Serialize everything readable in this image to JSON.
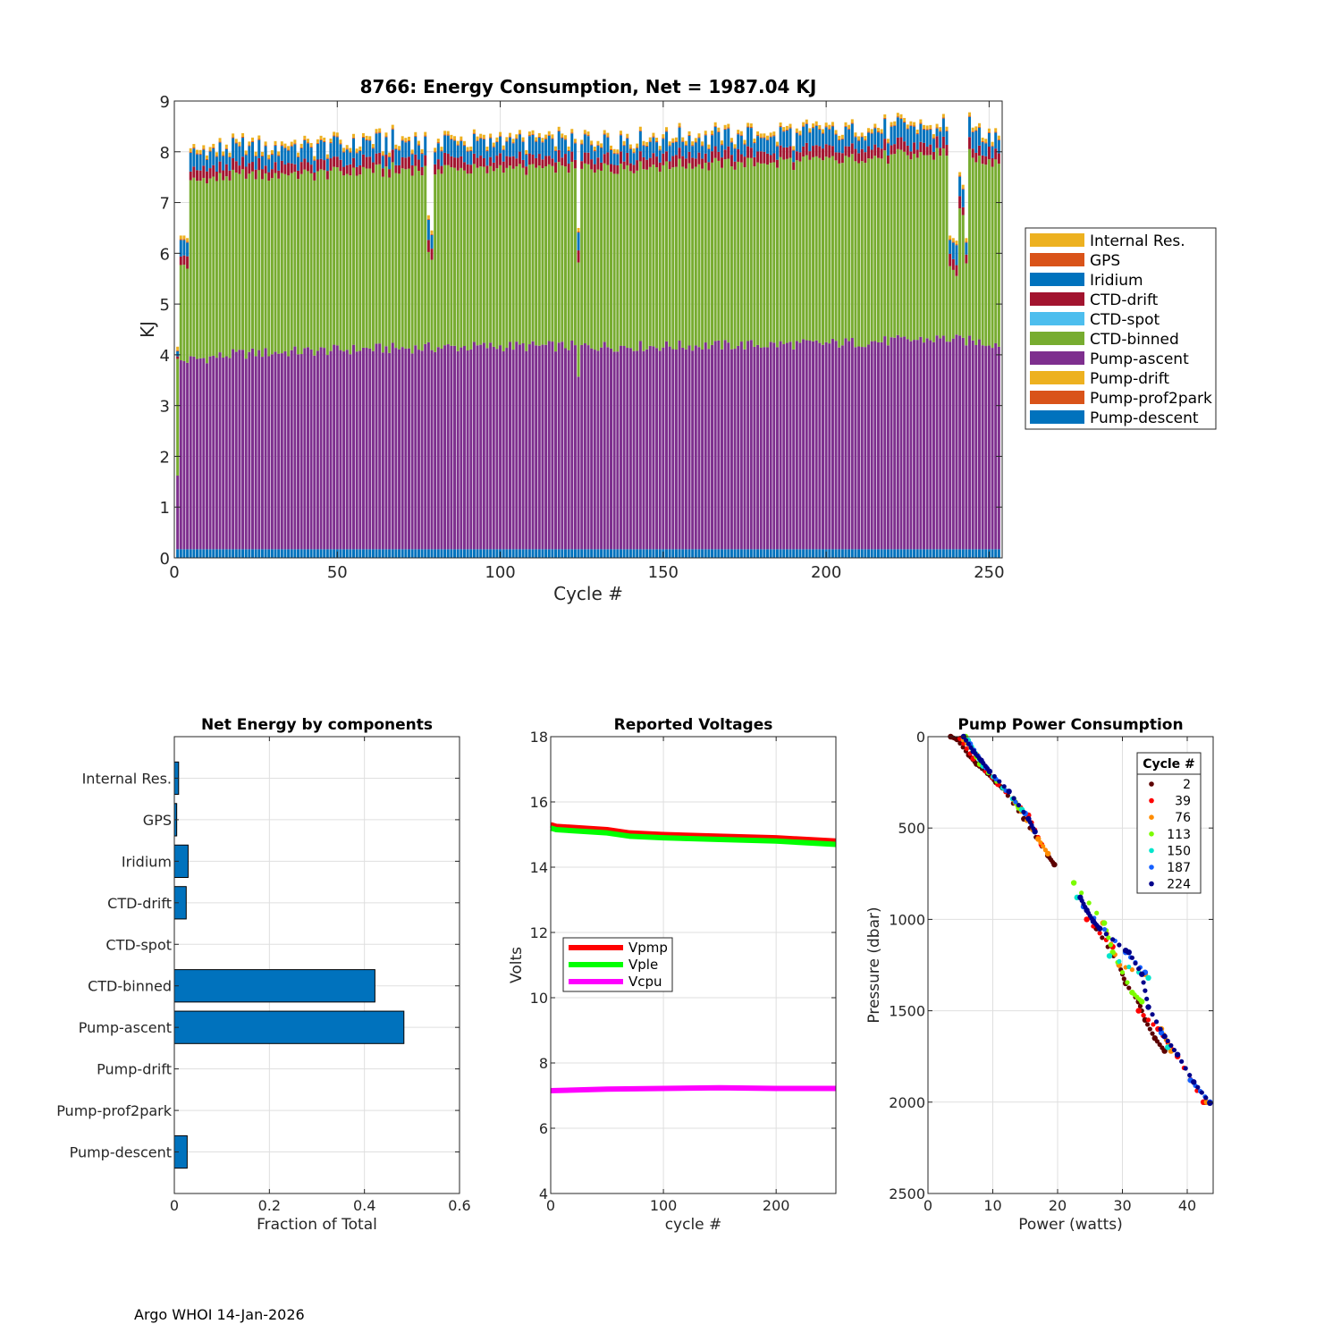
{
  "footer": "Argo WHOI 14-Jan-2026",
  "colors": {
    "Internal Res.": "#EDB120",
    "GPS": "#D95319",
    "Iridium": "#0072BD",
    "CTD-drift": "#A2142F",
    "CTD-spot": "#4DBEEE",
    "CTD-binned": "#77AC30",
    "Pump-ascent": "#7E2F8E",
    "Pump-drift": "#EDB120",
    "Pump-prof2park": "#D95319",
    "Pump-descent": "#0072BD",
    "Vpmp": "#FF0000",
    "Vple": "#00FF00",
    "Vcpu": "#FF00FF",
    "hbar": "#0072BD"
  },
  "chart_data": [
    {
      "type": "bar",
      "stacked": true,
      "title": "8766: Energy Consumption,  Net = 1987.04 KJ",
      "xlabel": "Cycle #",
      "ylabel": "KJ",
      "xlim": [
        0,
        254
      ],
      "ylim": [
        0,
        9
      ],
      "xticks": [
        0,
        50,
        100,
        150,
        200,
        250
      ],
      "yticks": [
        0,
        1,
        2,
        3,
        4,
        5,
        6,
        7,
        8,
        9
      ],
      "legend_position": "outside-right",
      "legend": [
        "Internal Res.",
        "GPS",
        "Iridium",
        "CTD-drift",
        "CTD-spot",
        "CTD-binned",
        "Pump-ascent",
        "Pump-drift",
        "Pump-prof2park",
        "Pump-descent"
      ],
      "cycles": {
        "first": 1,
        "last": 253
      },
      "typical_stack": {
        "Pump-descent": 0.17,
        "Pump-prof2park": 0.0,
        "Pump-drift": 0.0,
        "Pump-ascent": 3.85,
        "CTD-binned": 3.45,
        "CTD-spot": 0.0,
        "CTD-drift": 0.2,
        "Iridium": 0.3,
        "GPS": 0.02,
        "Internal Res.": 0.07
      },
      "pump_ascent_levels": [
        [
          1,
          3.7
        ],
        [
          20,
          3.85
        ],
        [
          60,
          3.95
        ],
        [
          100,
          4.0
        ],
        [
          150,
          4.0
        ],
        [
          200,
          4.05
        ],
        [
          236,
          4.15
        ],
        [
          253,
          4.05
        ]
      ],
      "ctd_binned_levels": [
        [
          1,
          3.5
        ],
        [
          50,
          3.5
        ],
        [
          100,
          3.5
        ],
        [
          150,
          3.55
        ],
        [
          200,
          3.6
        ],
        [
          236,
          3.65
        ],
        [
          253,
          3.6
        ]
      ],
      "low_cycles": [
        {
          "cycle": 1,
          "total": 4.3
        },
        {
          "cycle": 2,
          "total": 6.35
        },
        {
          "cycle": 3,
          "total": 6.35
        },
        {
          "cycle": 4,
          "total": 6.3
        },
        {
          "cycle": 78,
          "total": 6.75
        },
        {
          "cycle": 79,
          "total": 6.45
        },
        {
          "cycle": 124,
          "total": 6.4
        },
        {
          "cycle": 238,
          "total": 6.35
        },
        {
          "cycle": 239,
          "total": 6.3
        },
        {
          "cycle": 240,
          "total": 6.25
        },
        {
          "cycle": 241,
          "total": 7.6
        },
        {
          "cycle": 242,
          "total": 7.35
        },
        {
          "cycle": 243,
          "total": 6.3
        }
      ],
      "peaks": [
        {
          "cycle": 62,
          "total": 8.45
        },
        {
          "cycle": 197,
          "total": 8.6
        },
        {
          "cycle": 226,
          "total": 8.6
        },
        {
          "cycle": 234,
          "total": 8.55
        },
        {
          "cycle": 246,
          "total": 8.5
        },
        {
          "cycle": 122,
          "total": 8.45
        }
      ]
    },
    {
      "type": "bar",
      "orientation": "horizontal",
      "title": "Net Energy by components",
      "xlabel": "Fraction of Total",
      "ylabel": "",
      "xlim": [
        0,
        0.6
      ],
      "xticks": [
        0,
        0.2,
        0.4,
        0.6
      ],
      "xtick_labels": [
        "0",
        "0.2",
        "0.4",
        "0.6"
      ],
      "categories": [
        "Internal Res.",
        "GPS",
        "Iridium",
        "CTD-drift",
        "CTD-spot",
        "CTD-binned",
        "Pump-ascent",
        "Pump-drift",
        "Pump-prof2park",
        "Pump-descent"
      ],
      "values": [
        0.009,
        0.005,
        0.029,
        0.025,
        0.0,
        0.422,
        0.483,
        0.0,
        0.0,
        0.027
      ]
    },
    {
      "type": "line",
      "title": "Reported Voltages",
      "xlabel": "cycle #",
      "ylabel": "Volts",
      "xlim": [
        0,
        253
      ],
      "ylim": [
        4,
        18
      ],
      "xticks": [
        0,
        100,
        200
      ],
      "yticks": [
        4,
        6,
        8,
        10,
        12,
        14,
        16,
        18
      ],
      "legend_position": "center-left",
      "series": [
        {
          "name": "Vpmp",
          "x": [
            0,
            5,
            50,
            70,
            100,
            150,
            200,
            253
          ],
          "values": [
            15.3,
            15.25,
            15.15,
            15.05,
            15.0,
            14.95,
            14.9,
            14.8
          ]
        },
        {
          "name": "Vple",
          "x": [
            0,
            5,
            50,
            70,
            100,
            150,
            200,
            253
          ],
          "values": [
            15.2,
            15.15,
            15.05,
            14.95,
            14.9,
            14.85,
            14.8,
            14.7
          ]
        },
        {
          "name": "Vcpu",
          "x": [
            0,
            50,
            100,
            150,
            200,
            253
          ],
          "values": [
            7.15,
            7.2,
            7.22,
            7.24,
            7.22,
            7.22
          ]
        }
      ]
    },
    {
      "type": "scatter",
      "title": "Pump Power Consumption",
      "xlabel": "Power (watts)",
      "ylabel": "Pressure (dbar)",
      "xlim": [
        0,
        44
      ],
      "ylim": [
        0,
        2500
      ],
      "y_reversed": true,
      "xticks": [
        0,
        10,
        20,
        30,
        40
      ],
      "yticks": [
        0,
        500,
        1000,
        1500,
        2000,
        2500
      ],
      "legend_title": "Cycle #",
      "legend_position": "top-right",
      "series": [
        {
          "name": "2",
          "color": "#5C0000",
          "points": [
            [
              3.5,
              0
            ],
            [
              4.5,
              15
            ],
            [
              6.3,
              100
            ],
            [
              7.5,
              150
            ],
            [
              9.2,
              200
            ],
            [
              10.5,
              250
            ],
            [
              11.5,
              280
            ],
            [
              14.8,
              450
            ],
            [
              18.5,
              650
            ],
            [
              19.5,
              700
            ],
            [
              26,
              1050
            ],
            [
              29.5,
              1250
            ],
            [
              30.5,
              1350
            ],
            [
              32.5,
              1450
            ],
            [
              33.5,
              1550
            ],
            [
              35,
              1650
            ],
            [
              36.5,
              1720
            ],
            [
              42.8,
              2000
            ]
          ]
        },
        {
          "name": "39",
          "color": "#FF0000",
          "points": [
            [
              5.0,
              10
            ],
            [
              7.0,
              120
            ],
            [
              10.8,
              260
            ],
            [
              15.5,
              430
            ],
            [
              17.5,
              590
            ],
            [
              24.5,
              1000
            ],
            [
              28.5,
              1150
            ],
            [
              32.5,
              1500
            ],
            [
              35.5,
              1600
            ],
            [
              38.5,
              1750
            ],
            [
              42.5,
              2000
            ]
          ]
        },
        {
          "name": "76",
          "color": "#FF8C00",
          "points": [
            [
              5.5,
              15
            ],
            [
              7.5,
              100
            ],
            [
              13.5,
              360
            ],
            [
              17.0,
              560
            ],
            [
              18.5,
              640
            ],
            [
              27.0,
              1020
            ],
            [
              29.5,
              1250
            ],
            [
              33.5,
              1300
            ],
            [
              36.0,
              1600
            ],
            [
              37.5,
              1720
            ],
            [
              43.0,
              2000
            ]
          ]
        },
        {
          "name": "113",
          "color": "#7CFC00",
          "points": [
            [
              5.8,
              0
            ],
            [
              8.0,
              150
            ],
            [
              13.2,
              340
            ],
            [
              14.0,
              390
            ],
            [
              22.5,
              800
            ],
            [
              27.2,
              1020
            ],
            [
              28.5,
              1180
            ],
            [
              31.5,
              1400
            ],
            [
              33.0,
              1450
            ]
          ]
        },
        {
          "name": "150",
          "color": "#00E5CC",
          "points": [
            [
              6.2,
              20
            ],
            [
              8.5,
              160
            ],
            [
              14.5,
              400
            ],
            [
              23.0,
              880
            ],
            [
              28.0,
              1200
            ],
            [
              34.0,
              1320
            ],
            [
              37.0,
              1700
            ]
          ]
        },
        {
          "name": "187",
          "color": "#1560FF",
          "points": [
            [
              6.5,
              40
            ],
            [
              9.0,
              170
            ],
            [
              15.0,
              420
            ],
            [
              24.0,
              930
            ],
            [
              30.5,
              1180
            ],
            [
              33.5,
              1290
            ],
            [
              36.0,
              1620
            ],
            [
              40.5,
              1880
            ],
            [
              43.5,
              2000
            ]
          ]
        },
        {
          "name": "224",
          "color": "#00008B",
          "points": [
            [
              5.5,
              0
            ],
            [
              7.0,
              80
            ],
            [
              8.2,
              130
            ],
            [
              9.5,
              190
            ],
            [
              12.5,
              300
            ],
            [
              15.5,
              450
            ],
            [
              16.5,
              520
            ],
            [
              23.5,
              880
            ],
            [
              24.5,
              950
            ],
            [
              25.5,
              1010
            ],
            [
              26.5,
              1050
            ],
            [
              30.5,
              1170
            ],
            [
              31.0,
              1180
            ],
            [
              33.0,
              1300
            ],
            [
              34.0,
              1480
            ],
            [
              36.5,
              1640
            ],
            [
              38.5,
              1740
            ],
            [
              41.0,
              1890
            ],
            [
              43.5,
              2005
            ]
          ]
        }
      ]
    }
  ]
}
